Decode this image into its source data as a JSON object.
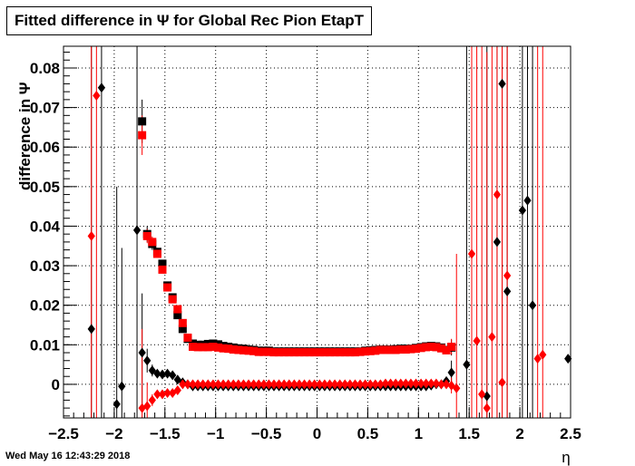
{
  "header": {
    "title": "Fitted difference in  Ψ  for Global Rec Pion EtapT"
  },
  "footer": {
    "timestamp": "Wed May 16 12:43:29 2018"
  },
  "colors": {
    "series_black": "#000000",
    "series_red": "#ff0000",
    "grid": "#000000"
  },
  "chart_data": {
    "type": "scatter",
    "title": "Fitted difference in  Ψ  for Global Rec Pion EtapT",
    "xlabel": "η",
    "ylabel": "difference in Ψ",
    "xlim": [
      -2.5,
      2.5
    ],
    "ylim": [
      -0.0085,
      0.0855
    ],
    "xticks": [
      -2.5,
      -2,
      -1.5,
      -1,
      -0.5,
      0,
      0.5,
      1,
      1.5,
      2,
      2.5
    ],
    "xtick_labels": [
      "−2.5",
      "−2",
      "−1.5",
      "−1",
      "−0.5",
      "0",
      "0.5",
      "1",
      "1.5",
      "2",
      "2.5"
    ],
    "yticks": [
      0,
      0.01,
      0.02,
      0.03,
      0.04,
      0.05,
      0.06,
      0.07,
      0.08
    ],
    "ytick_labels": [
      "0",
      "0.01",
      "0.02",
      "0.03",
      "0.04",
      "0.05",
      "0.06",
      "0.07",
      "0.08"
    ],
    "grid": true,
    "legend": "none",
    "series": [
      {
        "marker": "square",
        "color": "#000000",
        "x": [
          -1.725,
          -1.675,
          -1.625,
          -1.575,
          -1.525,
          -1.475,
          -1.425,
          -1.375,
          -1.325,
          -1.275,
          -1.225,
          -1.175,
          -1.125,
          -1.075,
          -1.025,
          -0.975,
          -0.925,
          -0.875,
          -0.825,
          -0.775,
          -0.725,
          -0.675,
          -0.625,
          -0.575,
          -0.525,
          -0.475,
          -0.425,
          -0.375,
          -0.325,
          -0.275,
          -0.225,
          -0.175,
          -0.125,
          -0.075,
          -0.025,
          0.025,
          0.075,
          0.125,
          0.175,
          0.225,
          0.275,
          0.325,
          0.375,
          0.425,
          0.475,
          0.525,
          0.575,
          0.625,
          0.675,
          0.725,
          0.775,
          0.825,
          0.875,
          0.925,
          0.975,
          1.025,
          1.075,
          1.125,
          1.175,
          1.225,
          1.275,
          1.325
        ],
        "y": [
          0.0665,
          0.038,
          0.0355,
          0.0335,
          0.0305,
          0.025,
          0.022,
          0.0175,
          0.014,
          0.0115,
          0.0103,
          0.01,
          0.01,
          0.0102,
          0.0103,
          0.0101,
          0.0097,
          0.0095,
          0.0093,
          0.0091,
          0.009,
          0.0088,
          0.0087,
          0.0085,
          0.0085,
          0.0085,
          0.0083,
          0.0083,
          0.0083,
          0.0083,
          0.0083,
          0.0083,
          0.0083,
          0.0083,
          0.0083,
          0.0083,
          0.0083,
          0.0083,
          0.0083,
          0.0083,
          0.0083,
          0.0083,
          0.0083,
          0.0083,
          0.0085,
          0.0086,
          0.0087,
          0.0088,
          0.0088,
          0.0088,
          0.0089,
          0.009,
          0.009,
          0.009,
          0.0092,
          0.0094,
          0.0096,
          0.0097,
          0.0096,
          0.0093,
          0.0087,
          0.0093
        ],
        "yerr": [
          0.0055,
          0.002,
          0.0015,
          0.001,
          0.001,
          0.0008,
          0.0006,
          0.0005,
          0.0004,
          0,
          0,
          0,
          0,
          0,
          0,
          0,
          0,
          0,
          0,
          0,
          0,
          0,
          0,
          0,
          0,
          0,
          0,
          0,
          0,
          0,
          0,
          0,
          0,
          0,
          0,
          0,
          0,
          0,
          0,
          0,
          0,
          0,
          0,
          0,
          0,
          0,
          0,
          0,
          0,
          0,
          0,
          0,
          0,
          0,
          0,
          0,
          0,
          0,
          0,
          0,
          0,
          0.002
        ]
      },
      {
        "marker": "square",
        "color": "#ff0000",
        "x": [
          -1.725,
          -1.675,
          -1.625,
          -1.575,
          -1.525,
          -1.475,
          -1.425,
          -1.375,
          -1.325,
          -1.275,
          -1.225,
          -1.175,
          -1.125,
          -1.075,
          -1.025,
          -0.975,
          -0.925,
          -0.875,
          -0.825,
          -0.775,
          -0.725,
          -0.675,
          -0.625,
          -0.575,
          -0.525,
          -0.475,
          -0.425,
          -0.375,
          -0.325,
          -0.275,
          -0.225,
          -0.175,
          -0.125,
          -0.075,
          -0.025,
          0.025,
          0.075,
          0.125,
          0.175,
          0.225,
          0.275,
          0.325,
          0.375,
          0.425,
          0.475,
          0.525,
          0.575,
          0.625,
          0.675,
          0.725,
          0.775,
          0.825,
          0.875,
          0.925,
          0.975,
          1.025,
          1.075,
          1.125,
          1.175,
          1.225,
          1.275,
          1.325
        ],
        "y": [
          0.063,
          0.0375,
          0.036,
          0.033,
          0.029,
          0.0245,
          0.0215,
          0.019,
          0.0155,
          0.0118,
          0.0095,
          0.0094,
          0.0094,
          0.0094,
          0.0095,
          0.0093,
          0.0091,
          0.009,
          0.0088,
          0.0087,
          0.0086,
          0.0085,
          0.0084,
          0.0082,
          0.0082,
          0.0082,
          0.0081,
          0.0081,
          0.0081,
          0.0081,
          0.0081,
          0.0081,
          0.0081,
          0.0081,
          0.0081,
          0.0081,
          0.0081,
          0.0081,
          0.0081,
          0.0081,
          0.0081,
          0.0081,
          0.0081,
          0.0082,
          0.0083,
          0.0084,
          0.0085,
          0.0087,
          0.0087,
          0.0087,
          0.0087,
          0.0088,
          0.0088,
          0.0089,
          0.009,
          0.0092,
          0.0094,
          0.0095,
          0.0094,
          0.0091,
          0.0086,
          0.0095
        ],
        "yerr": [
          0.005,
          0.0018,
          0.0014,
          0.001,
          0.0009,
          0.0007,
          0.0005,
          0.0004,
          0.0003,
          0,
          0,
          0,
          0,
          0,
          0,
          0,
          0,
          0,
          0,
          0,
          0,
          0,
          0,
          0,
          0,
          0,
          0,
          0,
          0,
          0,
          0,
          0,
          0,
          0,
          0,
          0,
          0,
          0,
          0,
          0,
          0,
          0,
          0,
          0,
          0,
          0,
          0,
          0,
          0,
          0,
          0,
          0,
          0,
          0,
          0,
          0,
          0,
          0,
          0,
          0,
          0,
          0.002
        ]
      },
      {
        "marker": "diamond",
        "color": "#000000",
        "x": [
          -2.225,
          -2.125,
          -1.975,
          -1.925,
          -1.775,
          -1.725,
          -1.675,
          -1.625,
          -1.575,
          -1.525,
          -1.475,
          -1.425,
          -1.375,
          -1.325,
          -1.275,
          -1.225,
          -1.175,
          -1.125,
          -1.075,
          -1.025,
          -0.975,
          -0.925,
          -0.875,
          -0.825,
          -0.775,
          -0.725,
          -0.675,
          -0.625,
          -0.575,
          -0.525,
          -0.475,
          -0.425,
          -0.375,
          -0.325,
          -0.275,
          -0.225,
          -0.175,
          -0.125,
          -0.075,
          -0.025,
          0.025,
          0.075,
          0.125,
          0.175,
          0.225,
          0.275,
          0.325,
          0.375,
          0.425,
          0.475,
          0.525,
          0.575,
          0.625,
          0.675,
          0.725,
          0.775,
          0.825,
          0.875,
          0.925,
          0.975,
          1.025,
          1.075,
          1.125,
          1.175,
          1.225,
          1.275,
          1.325,
          1.475,
          1.675,
          1.775,
          1.825,
          1.875,
          2.025,
          2.075,
          2.125,
          2.475
        ],
        "y": [
          0.014,
          0.075,
          -0.005,
          -0.0005,
          0.039,
          0.008,
          0.006,
          0.0035,
          0.0027,
          0.0025,
          0.0027,
          0.0023,
          0.0012,
          0.0005,
          0,
          -0.0005,
          -0.0005,
          -0.0005,
          -0.0005,
          -0.0005,
          -0.0005,
          -0.0005,
          -0.0005,
          -0.0005,
          -0.0005,
          -0.0005,
          -0.0005,
          -0.0005,
          -0.0005,
          -0.0005,
          -0.0005,
          -0.0005,
          -0.0005,
          -0.0005,
          -0.0005,
          -0.0005,
          -0.0005,
          -0.0005,
          -0.0005,
          -0.0005,
          -0.0005,
          -0.0005,
          -0.0005,
          -0.0005,
          -0.0005,
          -0.0005,
          -0.0005,
          -0.0005,
          -0.0005,
          -0.0005,
          -0.0005,
          -0.0005,
          -0.0005,
          -0.0005,
          -0.0005,
          -0.0005,
          -0.0005,
          -0.0005,
          -0.0005,
          -0.0005,
          -0.0005,
          -0.0005,
          -0.0003,
          0,
          0,
          0.0008,
          0.003,
          0.005,
          -0.003,
          0.036,
          0.076,
          0.0235,
          0.044,
          0.0465,
          0.02,
          0.0065
        ],
        "yerr": [
          0.09,
          0.09,
          0.055,
          0.035,
          0.08,
          0.015,
          0.003,
          0.0015,
          0.001,
          0.0008,
          0.0006,
          0.0005,
          0,
          0,
          0,
          0,
          0,
          0,
          0,
          0,
          0,
          0,
          0,
          0,
          0,
          0,
          0,
          0,
          0,
          0,
          0,
          0,
          0,
          0,
          0,
          0,
          0,
          0,
          0,
          0,
          0,
          0,
          0,
          0,
          0,
          0,
          0,
          0,
          0,
          0,
          0,
          0,
          0,
          0,
          0,
          0,
          0,
          0,
          0,
          0,
          0,
          0,
          0,
          0,
          0,
          0,
          0.003,
          0.09,
          0.09,
          0.09,
          0.09,
          0.09,
          0.09,
          0.09,
          0.09,
          0
        ]
      },
      {
        "marker": "diamond",
        "color": "#ff0000",
        "x": [
          -2.225,
          -2.175,
          -1.725,
          -1.675,
          -1.625,
          -1.575,
          -1.525,
          -1.475,
          -1.425,
          -1.375,
          -1.325,
          -1.275,
          -1.225,
          -1.175,
          -1.125,
          -1.075,
          -1.025,
          -0.975,
          -0.925,
          -0.875,
          -0.825,
          -0.775,
          -0.725,
          -0.675,
          -0.625,
          -0.575,
          -0.525,
          -0.475,
          -0.425,
          -0.375,
          -0.325,
          -0.275,
          -0.225,
          -0.175,
          -0.125,
          -0.075,
          -0.025,
          0.025,
          0.075,
          0.125,
          0.175,
          0.225,
          0.275,
          0.325,
          0.375,
          0.425,
          0.475,
          0.525,
          0.575,
          0.625,
          0.675,
          0.725,
          0.775,
          0.825,
          0.875,
          0.925,
          0.975,
          1.025,
          1.075,
          1.125,
          1.175,
          1.225,
          1.275,
          1.325,
          1.375,
          1.525,
          1.575,
          1.625,
          1.675,
          1.725,
          1.775,
          1.825,
          1.875,
          2.175,
          2.225
        ],
        "y": [
          0.0375,
          0.073,
          -0.006,
          -0.0055,
          -0.004,
          -0.0025,
          -0.0025,
          -0.0022,
          -0.0022,
          -0.0015,
          0,
          0,
          0,
          0,
          0,
          0,
          0,
          0,
          0,
          0,
          0,
          0,
          0,
          0,
          0,
          0,
          0,
          0,
          0,
          0,
          0,
          0,
          0,
          0,
          0,
          0,
          0,
          0,
          0,
          0,
          0,
          0,
          0,
          0,
          0,
          0,
          0,
          0,
          0,
          0,
          0.0002,
          0.0002,
          0.0002,
          0.0002,
          0.0002,
          0.0002,
          0.0002,
          0.0002,
          0.0002,
          0.0002,
          0.0002,
          0,
          0,
          -0.0003,
          -0.001,
          0.033,
          0.011,
          -0.0025,
          -0.006,
          0.012,
          0.048,
          0.0005,
          0.0275,
          0.0065,
          0.0075
        ],
        "yerr": [
          0.09,
          0.09,
          0.02,
          0.006,
          0.0015,
          0.001,
          0.0008,
          0.0006,
          0.0005,
          0.0005,
          0,
          0,
          0,
          0,
          0,
          0,
          0,
          0,
          0,
          0,
          0,
          0,
          0,
          0,
          0,
          0,
          0,
          0,
          0,
          0,
          0,
          0,
          0,
          0,
          0,
          0,
          0,
          0,
          0,
          0,
          0,
          0,
          0,
          0,
          0,
          0,
          0,
          0,
          0,
          0,
          0,
          0,
          0,
          0,
          0,
          0,
          0,
          0,
          0,
          0,
          0,
          0,
          0,
          0.002,
          0.034,
          0.09,
          0.09,
          0.09,
          0.09,
          0.09,
          0.09,
          0.09,
          0.09,
          0.09,
          0.09
        ]
      }
    ]
  }
}
